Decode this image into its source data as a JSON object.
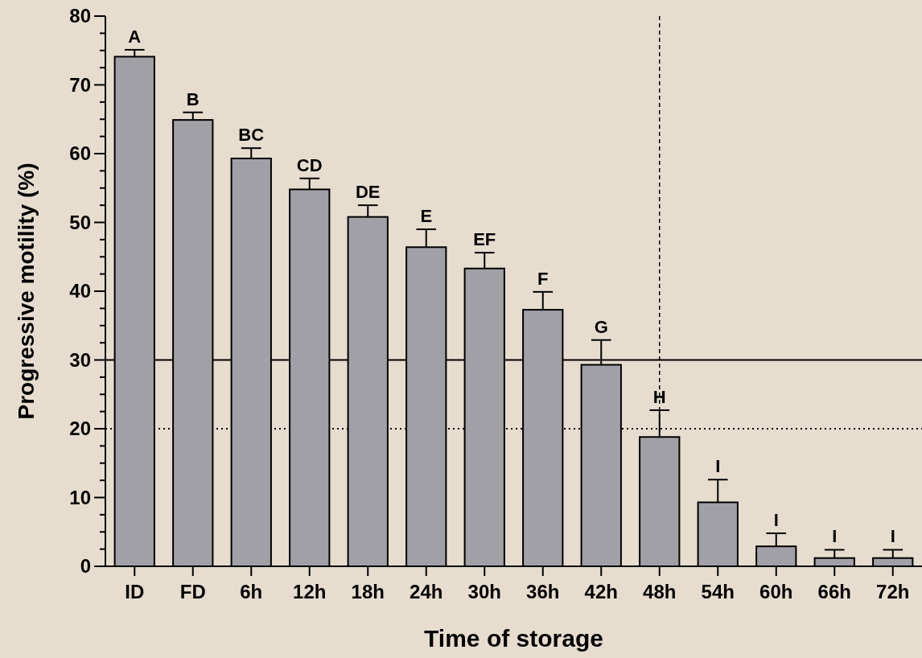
{
  "chart_data": {
    "type": "bar",
    "xlabel": "Time of storage",
    "ylabel": "Progressive motility (%)",
    "categories": [
      "ID",
      "FD",
      "6h",
      "12h",
      "18h",
      "24h",
      "30h",
      "36h",
      "42h",
      "48h",
      "54h",
      "60h",
      "66h",
      "72h"
    ],
    "values": [
      74.1,
      64.9,
      59.3,
      54.8,
      50.8,
      46.4,
      43.3,
      37.3,
      29.3,
      18.8,
      9.3,
      2.9,
      1.2,
      1.2
    ],
    "errors": [
      [
        74.1,
        75.1
      ],
      [
        64.9,
        66.0
      ],
      [
        59.3,
        60.8
      ],
      [
        54.8,
        56.4
      ],
      [
        50.8,
        52.5
      ],
      [
        46.4,
        49.0
      ],
      [
        43.3,
        45.6
      ],
      [
        37.3,
        39.9
      ],
      [
        29.3,
        32.9
      ],
      [
        18.8,
        22.7
      ],
      [
        9.3,
        12.6
      ],
      [
        2.9,
        4.8
      ],
      [
        1.2,
        2.4
      ],
      [
        1.2,
        2.4
      ]
    ],
    "color": "#a0a0a6",
    "ylim": [
      0,
      80
    ],
    "yticks": [
      0,
      {
        "value": 2.5,
        "label": null
      },
      {
        "value": 5,
        "label": null
      },
      {
        "value": 7.5,
        "label": null
      },
      10,
      {
        "value": 12.5,
        "label": null
      },
      {
        "value": 15,
        "label": null
      },
      {
        "value": 17.5,
        "label": null
      },
      20,
      {
        "value": 22.5,
        "label": null
      },
      {
        "value": 25,
        "label": null
      },
      {
        "value": 27.5,
        "label": null
      },
      30,
      {
        "value": 32.5,
        "label": null
      },
      {
        "value": 35,
        "label": null
      },
      {
        "value": 37.5,
        "label": null
      },
      40,
      {
        "value": 42.5,
        "label": null
      },
      {
        "value": 45,
        "label": null
      },
      {
        "value": 47.5,
        "label": null
      },
      50,
      {
        "value": 52.5,
        "label": null
      },
      {
        "value": 55,
        "label": null
      },
      {
        "value": 57.5,
        "label": null
      },
      60,
      {
        "value": 62.5,
        "label": null
      },
      {
        "value": 65,
        "label": null
      },
      {
        "value": 67.5,
        "label": null
      },
      70,
      {
        "value": 72.5,
        "label": null
      },
      {
        "value": 75,
        "label": null
      },
      {
        "value": 77.5,
        "label": null
      },
      80
    ],
    "ref_lines": [
      {
        "axis": "y",
        "value": 30,
        "line_style": "solid"
      },
      {
        "axis": "y",
        "value": 20,
        "line_style": "dotted"
      },
      {
        "axis": "x",
        "value": "48h",
        "line_style": "dashed"
      }
    ],
    "annotations": [
      {
        "text": "A",
        "x": "ID",
        "y": 75.1
      },
      {
        "text": "B",
        "x": "FD",
        "y": 66.0
      },
      {
        "text": "BC",
        "x": "6h",
        "y": 60.8
      },
      {
        "text": "CD",
        "x": "12h",
        "y": 56.4
      },
      {
        "text": "DE",
        "x": "18h",
        "y": 52.5
      },
      {
        "text": "E",
        "x": "24h",
        "y": 49.0
      },
      {
        "text": "EF",
        "x": "30h",
        "y": 45.6
      },
      {
        "text": "F",
        "x": "36h",
        "y": 39.9
      },
      {
        "text": "G",
        "x": "42h",
        "y": 32.9
      },
      {
        "text": "H",
        "x": "48h",
        "y": 22.7
      },
      {
        "text": "I",
        "x": "54h",
        "y": 12.6
      },
      {
        "text": "I",
        "x": "60h",
        "y": 4.8
      },
      {
        "text": "I",
        "x": "66h",
        "y": 2.4
      },
      {
        "text": "I",
        "x": "72h",
        "y": 2.4
      }
    ],
    "grid": false
  }
}
